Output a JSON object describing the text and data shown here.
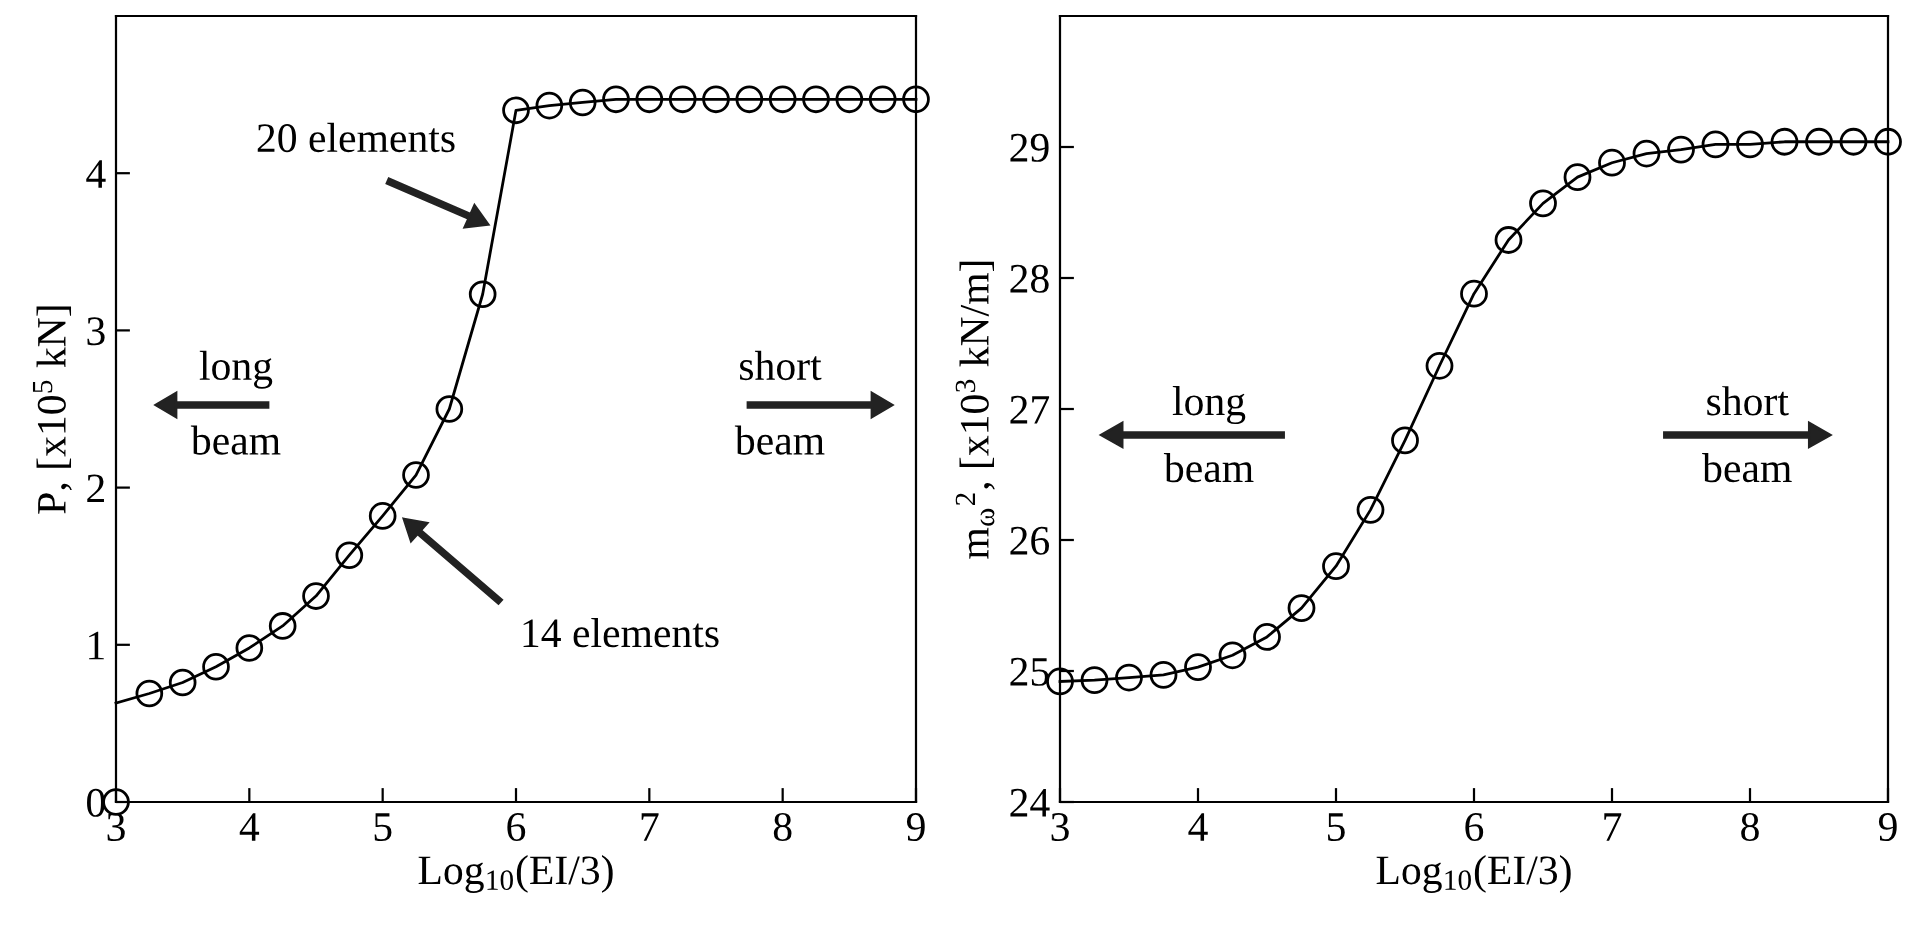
{
  "chart_data": [
    {
      "type": "line",
      "xlabel": "Log$_{10}$(EI/3)",
      "ylabel": "P, [x10$^{5}$ kN]",
      "xlim": [
        3,
        9
      ],
      "ylim": [
        0,
        5
      ],
      "xticks": [
        3,
        4,
        5,
        6,
        7,
        8,
        9
      ],
      "yticks": [
        0,
        1,
        2,
        3,
        4
      ],
      "grid": false,
      "legend": false,
      "series": [
        {
          "color": "#000000",
          "marker": "none",
          "line_style": "solid",
          "x": [
            3,
            3.25,
            3.5,
            3.75,
            4,
            4.25,
            4.5,
            4.75,
            5,
            5.25,
            5.5,
            5.75,
            6,
            6.25,
            6.5,
            6.75,
            7,
            7.25,
            7.5,
            7.75,
            8,
            8.25,
            8.5,
            8.75,
            9
          ],
          "values": [
            0.63,
            0.69,
            0.76,
            0.86,
            0.98,
            1.12,
            1.31,
            1.57,
            1.82,
            2.08,
            2.5,
            3.23,
            4.4,
            4.43,
            4.45,
            4.47,
            4.47,
            4.47,
            4.47,
            4.47,
            4.47,
            4.47,
            4.47,
            4.47,
            4.47
          ]
        },
        {
          "type": "scatter",
          "color": "#000000",
          "marker": "circle",
          "x": [
            3,
            3.25,
            3.5,
            3.75,
            4,
            4.25,
            4.5,
            4.75,
            5,
            5.25,
            5.5,
            5.75,
            6,
            6.25,
            6.5,
            6.75,
            7,
            7.25,
            7.5,
            7.75,
            8,
            8.25,
            8.5,
            8.75,
            9
          ],
          "values": [
            0,
            0.69,
            0.76,
            0.86,
            0.98,
            1.12,
            1.31,
            1.57,
            1.82,
            2.08,
            2.5,
            3.23,
            4.4,
            4.43,
            4.45,
            4.47,
            4.47,
            4.47,
            4.47,
            4.47,
            4.47,
            4.47,
            4.47,
            4.47,
            4.47
          ]
        }
      ],
      "annotations": [
        "20 elements",
        "14 elements",
        "long",
        "beam",
        "short",
        "beam"
      ]
    },
    {
      "type": "line",
      "xlabel": "Log$_{10}$(EI/3)",
      "ylabel": "m$_{ω}$$^{2}$, [x10$^{3}$ kN/m]",
      "xlim": [
        3,
        9
      ],
      "ylim": [
        24,
        30
      ],
      "xticks": [
        3,
        4,
        5,
        6,
        7,
        8,
        9
      ],
      "yticks": [
        24,
        25,
        26,
        27,
        28,
        29
      ],
      "grid": false,
      "legend": false,
      "series": [
        {
          "color": "#000000",
          "marker": "circle",
          "line_style": "solid",
          "x": [
            3,
            3.25,
            3.5,
            3.75,
            4,
            4.25,
            4.5,
            4.75,
            5,
            5.25,
            5.5,
            5.75,
            6,
            6.25,
            6.5,
            6.75,
            7,
            7.25,
            7.5,
            7.75,
            8,
            8.25,
            8.5,
            8.75,
            9
          ],
          "values": [
            24.92,
            24.93,
            24.95,
            24.97,
            25.03,
            25.12,
            25.26,
            25.48,
            25.8,
            26.23,
            26.76,
            27.33,
            27.88,
            28.29,
            28.57,
            28.77,
            28.88,
            28.95,
            28.98,
            29.02,
            29.02,
            29.04,
            29.04,
            29.04,
            29.04
          ]
        }
      ],
      "annotations": [
        "long",
        "beam",
        "short",
        "beam"
      ]
    }
  ]
}
